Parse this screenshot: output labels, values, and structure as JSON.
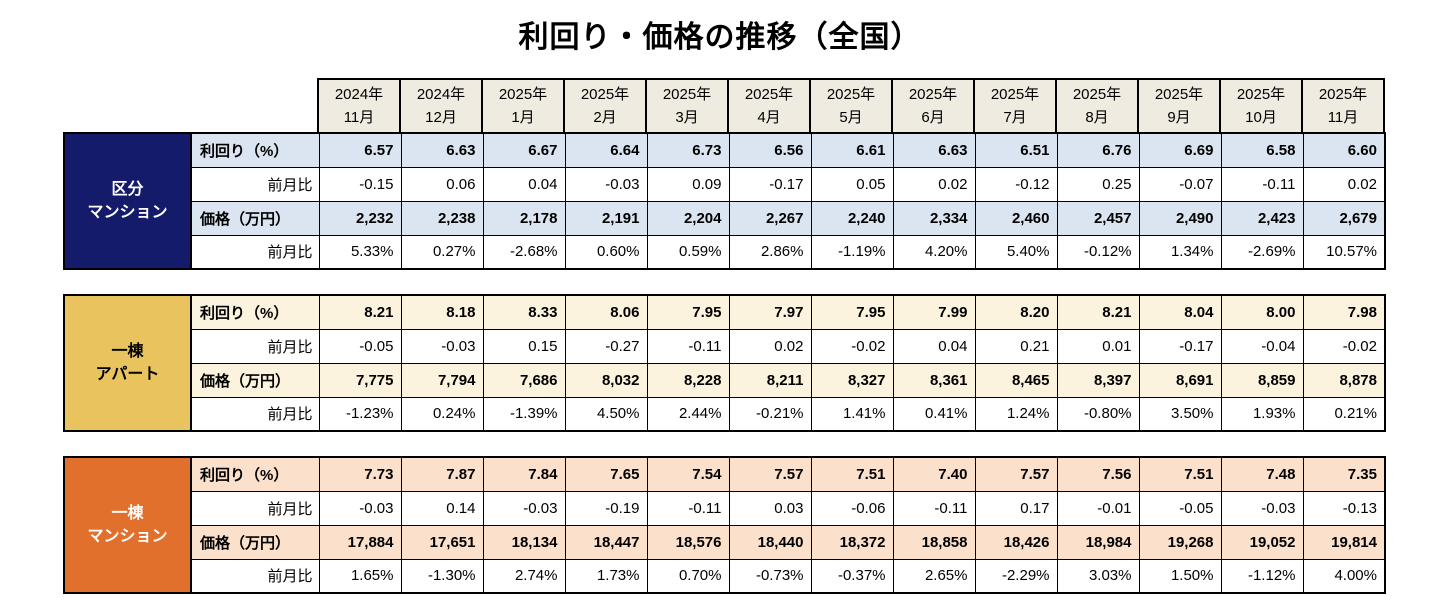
{
  "chart_data": {
    "type": "table",
    "title": "利回り・価格の推移（全国）",
    "columns": [
      {
        "line1": "2024年",
        "line2": "11月"
      },
      {
        "line1": "2024年",
        "line2": "12月"
      },
      {
        "line1": "2025年",
        "line2": "1月"
      },
      {
        "line1": "2025年",
        "line2": "2月"
      },
      {
        "line1": "2025年",
        "line2": "3月"
      },
      {
        "line1": "2025年",
        "line2": "4月"
      },
      {
        "line1": "2025年",
        "line2": "5月"
      },
      {
        "line1": "2025年",
        "line2": "6月"
      },
      {
        "line1": "2025年",
        "line2": "7月"
      },
      {
        "line1": "2025年",
        "line2": "8月"
      },
      {
        "line1": "2025年",
        "line2": "9月"
      },
      {
        "line1": "2025年",
        "line2": "10月"
      },
      {
        "line1": "2025年",
        "line2": "11月"
      }
    ],
    "header_bg": "#f0ebe0",
    "sections": [
      {
        "name": "区分マンション",
        "label_lines": [
          "区分",
          "マンション"
        ],
        "label_bg": "#141b6b",
        "label_color": "#ffffff",
        "band_bg": "#dbe5f1",
        "rows": [
          {
            "label": "利回り（%）",
            "emphasis": true,
            "values": [
              "6.57",
              "6.63",
              "6.67",
              "6.64",
              "6.73",
              "6.56",
              "6.61",
              "6.63",
              "6.51",
              "6.76",
              "6.69",
              "6.58",
              "6.60"
            ]
          },
          {
            "label": "前月比",
            "emphasis": false,
            "values": [
              "-0.15",
              "0.06",
              "0.04",
              "-0.03",
              "0.09",
              "-0.17",
              "0.05",
              "0.02",
              "-0.12",
              "0.25",
              "-0.07",
              "-0.11",
              "0.02"
            ]
          },
          {
            "label": "価格（万円）",
            "emphasis": true,
            "values": [
              "2,232",
              "2,238",
              "2,178",
              "2,191",
              "2,204",
              "2,267",
              "2,240",
              "2,334",
              "2,460",
              "2,457",
              "2,490",
              "2,423",
              "2,679"
            ]
          },
          {
            "label": "前月比",
            "emphasis": false,
            "values": [
              "5.33%",
              "0.27%",
              "-2.68%",
              "0.60%",
              "0.59%",
              "2.86%",
              "-1.19%",
              "4.20%",
              "5.40%",
              "-0.12%",
              "1.34%",
              "-2.69%",
              "10.57%"
            ]
          }
        ]
      },
      {
        "name": "一棟アパート",
        "label_lines": [
          "一棟",
          "アパート"
        ],
        "label_bg": "#e9c45e",
        "label_color": "#000000",
        "band_bg": "#fbf3dd",
        "rows": [
          {
            "label": "利回り（%）",
            "emphasis": true,
            "values": [
              "8.21",
              "8.18",
              "8.33",
              "8.06",
              "7.95",
              "7.97",
              "7.95",
              "7.99",
              "8.20",
              "8.21",
              "8.04",
              "8.00",
              "7.98"
            ]
          },
          {
            "label": "前月比",
            "emphasis": false,
            "values": [
              "-0.05",
              "-0.03",
              "0.15",
              "-0.27",
              "-0.11",
              "0.02",
              "-0.02",
              "0.04",
              "0.21",
              "0.01",
              "-0.17",
              "-0.04",
              "-0.02"
            ]
          },
          {
            "label": "価格（万円）",
            "emphasis": true,
            "values": [
              "7,775",
              "7,794",
              "7,686",
              "8,032",
              "8,228",
              "8,211",
              "8,327",
              "8,361",
              "8,465",
              "8,397",
              "8,691",
              "8,859",
              "8,878"
            ]
          },
          {
            "label": "前月比",
            "emphasis": false,
            "values": [
              "-1.23%",
              "0.24%",
              "-1.39%",
              "4.50%",
              "2.44%",
              "-0.21%",
              "1.41%",
              "0.41%",
              "1.24%",
              "-0.80%",
              "3.50%",
              "1.93%",
              "0.21%"
            ]
          }
        ]
      },
      {
        "name": "一棟マンション",
        "label_lines": [
          "一棟",
          "マンション"
        ],
        "label_bg": "#e2702d",
        "label_color": "#ffffff",
        "band_bg": "#fbe1cb",
        "rows": [
          {
            "label": "利回り（%）",
            "emphasis": true,
            "values": [
              "7.73",
              "7.87",
              "7.84",
              "7.65",
              "7.54",
              "7.57",
              "7.51",
              "7.40",
              "7.57",
              "7.56",
              "7.51",
              "7.48",
              "7.35"
            ]
          },
          {
            "label": "前月比",
            "emphasis": false,
            "values": [
              "-0.03",
              "0.14",
              "-0.03",
              "-0.19",
              "-0.11",
              "0.03",
              "-0.06",
              "-0.11",
              "0.17",
              "-0.01",
              "-0.05",
              "-0.03",
              "-0.13"
            ]
          },
          {
            "label": "価格（万円）",
            "emphasis": true,
            "values": [
              "17,884",
              "17,651",
              "18,134",
              "18,447",
              "18,576",
              "18,440",
              "18,372",
              "18,858",
              "18,426",
              "18,984",
              "19,268",
              "19,052",
              "19,814"
            ]
          },
          {
            "label": "前月比",
            "emphasis": false,
            "values": [
              "1.65%",
              "-1.30%",
              "2.74%",
              "1.73%",
              "0.70%",
              "-0.73%",
              "-0.37%",
              "2.65%",
              "-2.29%",
              "3.03%",
              "1.50%",
              "-1.12%",
              "4.00%"
            ]
          }
        ]
      }
    ]
  }
}
